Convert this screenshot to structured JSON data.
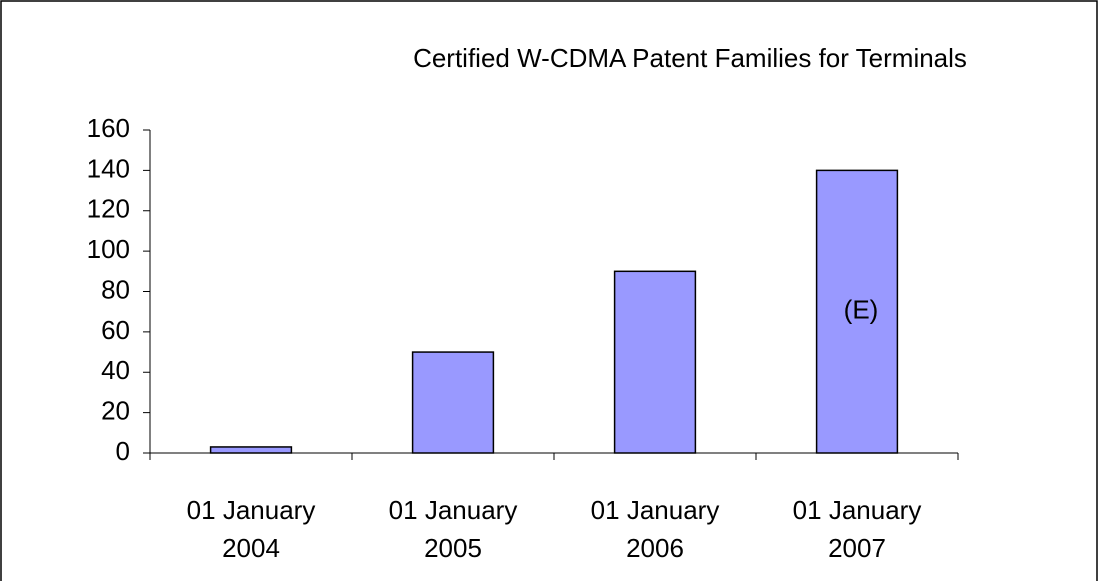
{
  "chart_data": {
    "type": "bar",
    "title": "Certified W-CDMA Patent Families for Terminals",
    "categories": [
      "01 January 2004",
      "01 January 2005",
      "01 January 2006",
      "01 January 2007"
    ],
    "values": [
      3,
      50,
      90,
      140
    ],
    "color": "#9999ff",
    "annotation": "(E)",
    "ylim": [
      0,
      160
    ],
    "yticks": [
      0,
      20,
      40,
      60,
      80,
      100,
      120,
      140,
      160
    ],
    "grid": false
  }
}
